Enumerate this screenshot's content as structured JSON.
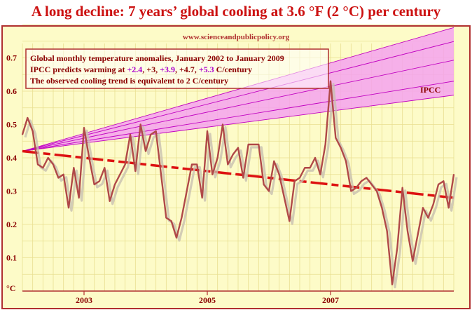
{
  "headline": "A long decline: 7 years’ global cooling at 3.6 °F (2 °C) per century",
  "watermark": "www.scienceandpublicpolicy.org",
  "legend": {
    "line1": "Global monthly temperature anomalies, January 2002 to January 2009",
    "line2_prefix": "IPCC predicts warming at ",
    "rates": [
      "+2.4",
      ", +3, ",
      "+3.9",
      ", +4.7, ",
      "+5.3"
    ],
    "line2_suffix": " C/century",
    "line3": "The observed cooling trend is equivalent to 2 C/century"
  },
  "colors": {
    "title": "#cc1111",
    "frame": "#b03030",
    "plot_background": "#fdfbc8",
    "grid": "#e8df90",
    "ipcc_band": "#f4a2ee",
    "ipcc_line": "#c000c0",
    "series": "#b04848",
    "series_shadow": "#c8c0b0",
    "trend": "#dd1111",
    "legend_text": "#8b0000",
    "legend_highlight": "#aa00cc",
    "axis_text": "#8b0000"
  },
  "chart_data": {
    "type": "line",
    "title": "A long decline: 7 years’ global cooling at 3.6 °F (2 °C) per century",
    "ylabel": "°C",
    "ylim": [
      0,
      0.8
    ],
    "xlim": [
      2002.0,
      2009.0
    ],
    "yticks": [
      0.1,
      0.2,
      0.3,
      0.4,
      0.5,
      0.6,
      0.7
    ],
    "ytick_labels": [
      "0.1",
      "0.2",
      "0.3",
      "0.4",
      "0.5",
      "0.6",
      "0.7"
    ],
    "xticks": [
      2003,
      2005,
      2007
    ],
    "xtick_labels": [
      "2003",
      "2005",
      "2007"
    ],
    "grid": true,
    "series": [
      {
        "x_start": 2002.0,
        "x_step_months": 1,
        "values": [
          0.47,
          0.52,
          0.48,
          0.38,
          0.37,
          0.4,
          0.38,
          0.34,
          0.35,
          0.25,
          0.37,
          0.28,
          0.49,
          0.4,
          0.32,
          0.33,
          0.37,
          0.27,
          0.32,
          0.35,
          0.38,
          0.47,
          0.36,
          0.5,
          0.42,
          0.47,
          0.48,
          0.35,
          0.22,
          0.21,
          0.16,
          0.22,
          0.3,
          0.38,
          0.38,
          0.28,
          0.48,
          0.35,
          0.4,
          0.5,
          0.38,
          0.41,
          0.43,
          0.34,
          0.44,
          0.44,
          0.44,
          0.32,
          0.3,
          0.39,
          0.35,
          0.28,
          0.21,
          0.33,
          0.34,
          0.37,
          0.37,
          0.4,
          0.35,
          0.44,
          0.63,
          0.46,
          0.43,
          0.39,
          0.3,
          0.31,
          0.33,
          0.34,
          0.32,
          0.3,
          0.25,
          0.18,
          0.02,
          0.13,
          0.31,
          0.18,
          0.09,
          0.17,
          0.25,
          0.22,
          0.26,
          0.32,
          0.33,
          0.25,
          0.35
        ]
      }
    ],
    "trend": {
      "name": "observed trend",
      "start": 0.42,
      "end": 0.28,
      "rate_c_per_century": -2
    },
    "ipcc": {
      "label": "IPCC",
      "origin": 0.42,
      "rates_c_per_century": [
        2.4,
        3.0,
        3.9,
        4.7,
        5.3
      ]
    }
  }
}
